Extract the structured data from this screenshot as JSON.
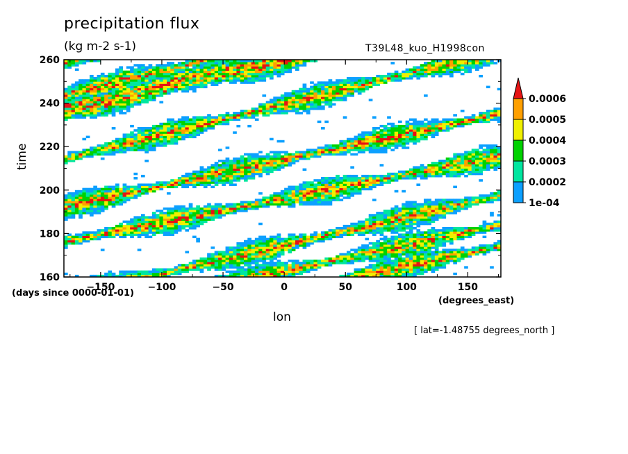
{
  "chart_data": {
    "type": "heatmap",
    "title": "precipitation flux",
    "units": "(kg m-2 s-1)",
    "run_label": "T39L48_kuo_H1998con",
    "xlabel": "lon",
    "x_units": "(degrees_east)",
    "ylabel": "time",
    "y_units": "(days since 0000-01-01)",
    "note": "[ lat=-1.48755 degrees_north ]",
    "xlim": [
      -180,
      177
    ],
    "ylim": [
      160,
      260
    ],
    "x_ticks": [
      -150,
      -100,
      -50,
      0,
      50,
      100,
      150
    ],
    "y_ticks": [
      160,
      180,
      200,
      220,
      240,
      260
    ],
    "levels": [
      0.0001,
      0.0002,
      0.0003,
      0.0004,
      0.0005,
      0.0006
    ],
    "colorbar_labels": [
      "1e-04",
      "0.0002",
      "0.0003",
      "0.0004",
      "0.0005",
      "0.0006"
    ],
    "colors": [
      "#0ca0ff",
      "#00e6a0",
      "#00d200",
      "#f0f000",
      "#ffa000",
      "#e61414"
    ],
    "colorbar_extend": "max",
    "pattern": "eastward-propagating rain bands (time increases with longitude)",
    "bands": [
      {
        "lon_start": -180,
        "time_start": 258,
        "slope_days_per_deg": 0.12
      },
      {
        "lon_start": -180,
        "time_start": 238,
        "slope_days_per_deg": 0.13
      },
      {
        "lon_start": -180,
        "time_start": 214,
        "slope_days_per_deg": 0.14
      },
      {
        "lon_start": -180,
        "time_start": 192,
        "slope_days_per_deg": 0.12
      },
      {
        "lon_start": -180,
        "time_start": 176,
        "slope_days_per_deg": 0.11
      },
      {
        "lon_start": -110,
        "time_start": 160,
        "slope_days_per_deg": 0.13
      },
      {
        "lon_start": -20,
        "time_start": 160,
        "slope_days_per_deg": 0.12
      },
      {
        "lon_start": 60,
        "time_start": 160,
        "slope_days_per_deg": 0.12
      },
      {
        "lon_start": -60,
        "time_start": 260,
        "slope_days_per_deg": 0.14
      },
      {
        "lon_start": 10,
        "time_start": 260,
        "slope_days_per_deg": 0.13
      }
    ]
  }
}
